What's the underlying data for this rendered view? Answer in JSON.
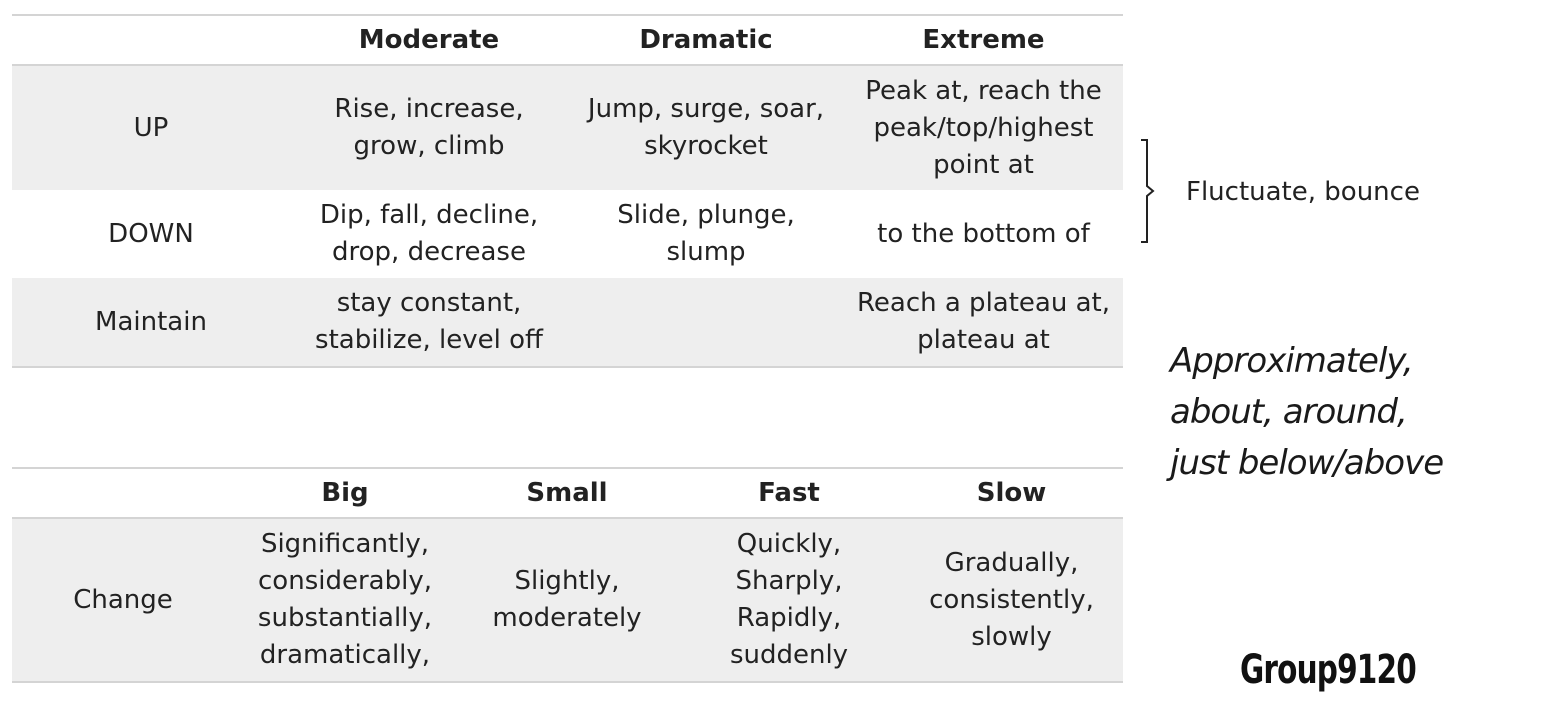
{
  "table_movement": {
    "headers": [
      "",
      "Moderate",
      "Dramatic",
      "Extreme"
    ],
    "rows": [
      {
        "label": "UP",
        "moderate": [
          "Rise, increase,",
          "grow, climb"
        ],
        "dramatic": [
          "Jump, surge, soar,",
          "skyrocket"
        ],
        "extreme": [
          "Peak at, reach the",
          "peak/top/highest",
          "point at"
        ]
      },
      {
        "label": "DOWN",
        "moderate": [
          "Dip, fall, decline,",
          "drop, decrease"
        ],
        "dramatic": [
          "Slide, plunge,",
          "slump"
        ],
        "extreme": [
          "to the bottom of"
        ]
      },
      {
        "label": "Maintain",
        "moderate": [
          "stay constant,",
          "stabilize, level off"
        ],
        "dramatic": [],
        "extreme": [
          "Reach a plateau at,",
          "plateau at"
        ]
      }
    ]
  },
  "side_note": "Fluctuate, bounce",
  "handwritten_note": [
    "Approximately,",
    "about, around,",
    "just below/above"
  ],
  "table_change": {
    "headers": [
      "",
      "Big",
      "Small",
      "Fast",
      "Slow"
    ],
    "rows": [
      {
        "label": "Change",
        "big": [
          "Significantly,",
          "considerably,",
          "substantially,",
          "dramatically,"
        ],
        "small": [
          "Slightly,",
          "moderately"
        ],
        "fast": [
          "Quickly,",
          "Sharply,",
          "Rapidly,",
          "suddenly"
        ],
        "slow": [
          "Gradually,",
          "consistently,",
          "slowly"
        ]
      }
    ]
  },
  "watermark": "Group9120"
}
